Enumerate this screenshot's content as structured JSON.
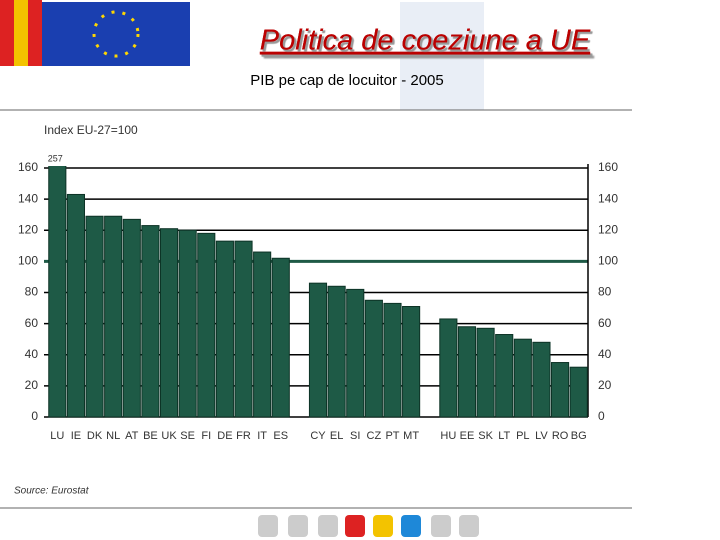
{
  "header": {
    "title": "Politica de coeziune a UE",
    "subtitle": "PIB pe cap de locuitor - 2005"
  },
  "chart_data": {
    "type": "bar",
    "title": "Index EU-27=100",
    "source": "Source: Eurostat",
    "categories": [
      "LU",
      "IE",
      "DK",
      "NL",
      "AT",
      "BE",
      "UK",
      "SE",
      "FI",
      "DE",
      "FR",
      "IT",
      "ES",
      null,
      "CY",
      "EL",
      "SI",
      "CZ",
      "PT",
      "MT",
      null,
      "HU",
      "EE",
      "SK",
      "LT",
      "PL",
      "LV",
      "RO",
      "BG"
    ],
    "values": [
      257,
      143,
      129,
      129,
      127,
      123,
      121,
      120,
      118,
      113,
      113,
      106,
      102,
      null,
      86,
      84,
      82,
      75,
      73,
      71,
      null,
      63,
      58,
      57,
      53,
      50,
      48,
      35,
      32
    ],
    "value_labels": [
      "257",
      null,
      null,
      null,
      null,
      null,
      null,
      null,
      null,
      null,
      null,
      null,
      null,
      null,
      null,
      null,
      null,
      null,
      null,
      null,
      null,
      null,
      null,
      null,
      null,
      null,
      null,
      null,
      null
    ],
    "color": "#1e5a46",
    "ylim": [
      0,
      160
    ],
    "yticks": [
      0,
      20,
      40,
      60,
      80,
      100,
      120,
      140,
      160
    ],
    "grid": true
  }
}
